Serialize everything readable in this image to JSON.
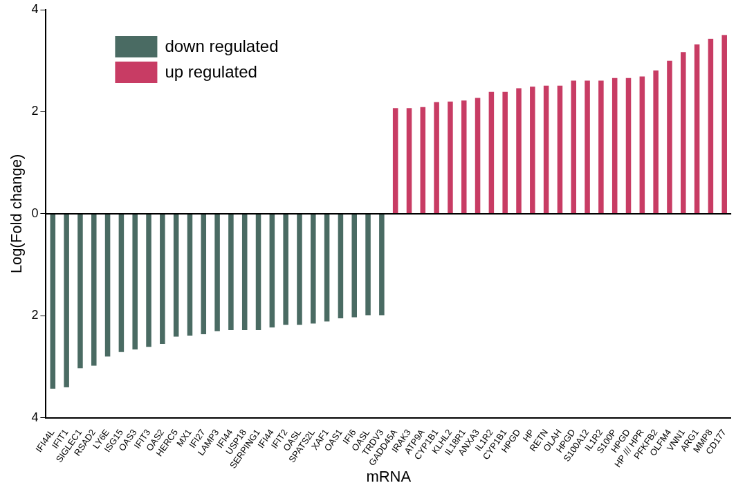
{
  "chart_data": {
    "type": "bar",
    "xlabel": "mRNA",
    "ylabel": "Log(Fold change)",
    "categories": [
      "IFI44L",
      "IFIT1",
      "SIGLEC1",
      "RSAD2",
      "LY6E",
      "ISG15",
      "OAS3",
      "IFIT3",
      "OAS2",
      "HERC5",
      "MX1",
      "IFI27",
      "LAMP3",
      "IFI44",
      "USP18",
      "SERPING1",
      "IFI44",
      "IFIT2",
      "OASL",
      "SPATS2L",
      "XAF1",
      "OAS1",
      "IFI6",
      "OASL",
      "TRDV3",
      "GADD45A",
      "IRAK3",
      "ATP9A",
      "CYP1B1",
      "KLHL2",
      "IL18R1",
      "ANXA3",
      "IL1R2",
      "CYP1B1",
      "HPGD",
      "HP",
      "RETN",
      "OLAH",
      "HPGD",
      "S100A12",
      "IL1R2",
      "S100P",
      "HPGD",
      "HP /// HPR",
      "PFKFB2",
      "OLFM4",
      "VNN1",
      "ARG1",
      "MMP8",
      "CD177"
    ],
    "series": [
      {
        "name": "down regulated",
        "color": "#4a6b63",
        "values": [
          -3.43,
          -3.4,
          -3.03,
          -2.98,
          -2.8,
          -2.71,
          -2.66,
          -2.61,
          -2.55,
          -2.41,
          -2.39,
          -2.36,
          -2.3,
          -2.28,
          -2.28,
          -2.28,
          -2.23,
          -2.18,
          -2.18,
          -2.15,
          -2.11,
          -2.05,
          -2.03,
          -1.99,
          -1.99,
          null,
          null,
          null,
          null,
          null,
          null,
          null,
          null,
          null,
          null,
          null,
          null,
          null,
          null,
          null,
          null,
          null,
          null,
          null,
          null,
          null,
          null,
          null,
          null,
          null
        ]
      },
      {
        "name": "up regulated",
        "color": "#c83c64",
        "values": [
          null,
          null,
          null,
          null,
          null,
          null,
          null,
          null,
          null,
          null,
          null,
          null,
          null,
          null,
          null,
          null,
          null,
          null,
          null,
          null,
          null,
          null,
          null,
          null,
          null,
          2.07,
          2.07,
          2.09,
          2.19,
          2.2,
          2.22,
          2.27,
          2.39,
          2.39,
          2.46,
          2.49,
          2.51,
          2.51,
          2.61,
          2.61,
          2.61,
          2.66,
          2.66,
          2.69,
          2.81,
          3.0,
          3.17,
          3.32,
          3.43,
          3.5
        ]
      }
    ],
    "ylim": [
      -4,
      4
    ],
    "yticks": [
      {
        "value": -4,
        "label": "4"
      },
      {
        "value": -2,
        "label": "2"
      },
      0,
      2,
      4
    ],
    "ref_lines": [
      {
        "axis": "y",
        "value": 0,
        "color": "#000000"
      }
    ],
    "legend": "top left"
  }
}
